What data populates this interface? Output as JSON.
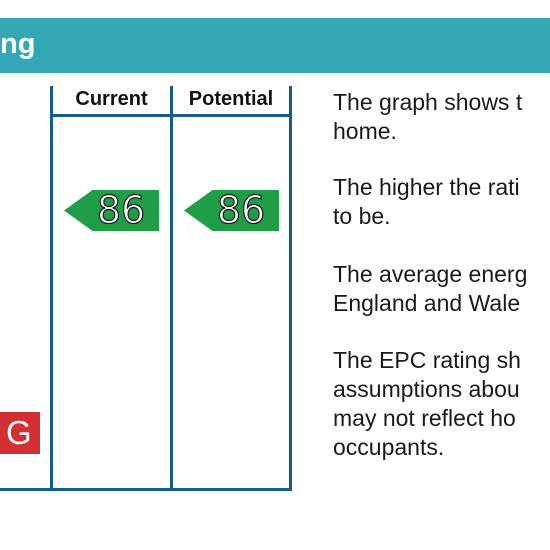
{
  "header": {
    "title": "ng",
    "color": "#33a7b3"
  },
  "columns": {
    "current_label": "Current",
    "potential_label": "Potential"
  },
  "ratings": {
    "current": "86",
    "potential": "86",
    "arrow_color": "#1f9d47"
  },
  "bands": {
    "g_label": "G",
    "g_color": "#d32e32"
  },
  "info": {
    "p1": [
      "The graph shows t",
      "home."
    ],
    "p2": [
      "The higher the rati",
      "to be."
    ],
    "p3": [
      "The average energ",
      "England and Wale"
    ],
    "p4": [
      "The EPC rating sh",
      "assumptions abou",
      "may not reflect  ho",
      "occupants."
    ]
  }
}
